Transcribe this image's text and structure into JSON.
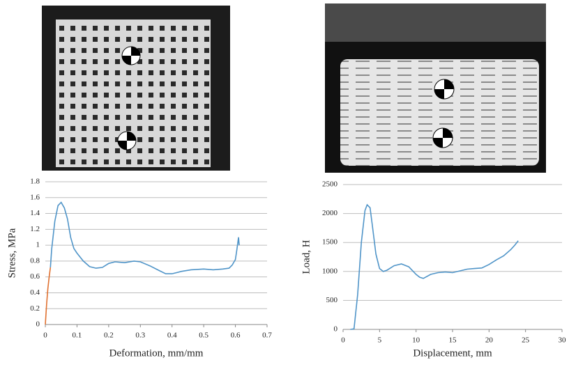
{
  "chart_data": [
    {
      "type": "line",
      "xlabel": "Deformation, mm/mm",
      "ylabel": "Stress, MPa",
      "xlim": [
        0,
        0.7
      ],
      "xticks": [
        0,
        0.1,
        0.2,
        0.3,
        0.4,
        0.5,
        0.6,
        0.7
      ],
      "ylim": [
        0,
        1.8
      ],
      "yticks": [
        0,
        0.2,
        0.4,
        0.6,
        0.8,
        1,
        1.2,
        1.4,
        1.6,
        1.8
      ],
      "grid": true,
      "series": [
        {
          "color": "#e0702f",
          "x": [
            0,
            0.004,
            0.008,
            0.012,
            0.016
          ],
          "values": [
            0,
            0.25,
            0.45,
            0.6,
            0.72
          ]
        },
        {
          "color": "#4f94c8",
          "x": [
            0.016,
            0.02,
            0.03,
            0.04,
            0.05,
            0.06,
            0.07,
            0.08,
            0.09,
            0.1,
            0.12,
            0.14,
            0.16,
            0.18,
            0.2,
            0.22,
            0.25,
            0.28,
            0.3,
            0.33,
            0.36,
            0.38,
            0.4,
            0.43,
            0.46,
            0.5,
            0.53,
            0.56,
            0.58,
            0.59,
            0.6,
            0.605,
            0.61,
            0.612
          ],
          "values": [
            0.72,
            0.95,
            1.3,
            1.5,
            1.54,
            1.47,
            1.33,
            1.1,
            0.96,
            0.9,
            0.8,
            0.73,
            0.71,
            0.72,
            0.77,
            0.79,
            0.78,
            0.8,
            0.79,
            0.74,
            0.68,
            0.64,
            0.64,
            0.67,
            0.69,
            0.7,
            0.69,
            0.7,
            0.71,
            0.75,
            0.82,
            0.95,
            1.1,
            1.0
          ]
        }
      ]
    },
    {
      "type": "line",
      "xlabel": "Displacement, mm",
      "ylabel": "Load, H",
      "xlim": [
        0,
        30
      ],
      "xticks": [
        0,
        5,
        10,
        15,
        20,
        25,
        30
      ],
      "ylim": [
        0,
        2500
      ],
      "yticks": [
        0,
        500,
        1000,
        1500,
        2000,
        2500
      ],
      "grid": true,
      "series": [
        {
          "color": "#4f94c8",
          "x": [
            1,
            1.5,
            2,
            2.5,
            3,
            3.3,
            3.7,
            4,
            4.5,
            5,
            5.5,
            6,
            7,
            8,
            9,
            10,
            10.5,
            11,
            12,
            13,
            14,
            15,
            16,
            17,
            18,
            19,
            20,
            21,
            22,
            23,
            23.5,
            24
          ],
          "values": [
            0,
            10,
            600,
            1500,
            2050,
            2150,
            2100,
            1800,
            1300,
            1050,
            1000,
            1020,
            1100,
            1130,
            1080,
            950,
            900,
            880,
            950,
            980,
            990,
            980,
            1010,
            1040,
            1050,
            1060,
            1120,
            1200,
            1270,
            1380,
            1450,
            1530
          ]
        }
      ]
    }
  ]
}
